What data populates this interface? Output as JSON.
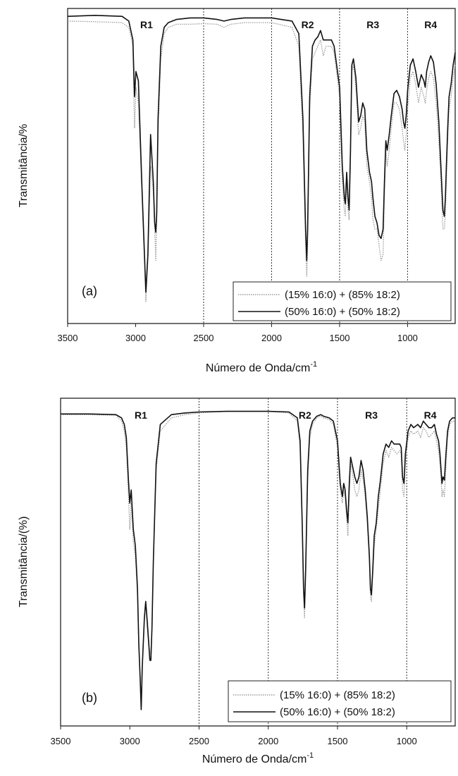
{
  "chart_data": [
    {
      "type": "line",
      "panel_label": "(a)",
      "xlabel": "Número de Onda/cm",
      "xlabel_sup": "-1",
      "ylabel": "Transmitância/%",
      "xlim": [
        3500,
        650
      ],
      "ylim": [
        0,
        1
      ],
      "x_ticks": [
        "3500",
        "3000",
        "2500",
        "2000",
        "1500",
        "1000"
      ],
      "x_tick_values": [
        3500,
        3000,
        2500,
        2000,
        1500,
        1000
      ],
      "region_dividers": [
        2500,
        2000,
        1500,
        1000
      ],
      "regions": [
        {
          "label": "R1",
          "x": 2920
        },
        {
          "label": "R2",
          "x": 1735
        },
        {
          "label": "R3",
          "x": 1255
        },
        {
          "label": "R4",
          "x": 830
        }
      ],
      "legend_position": "bottom-right",
      "series": [
        {
          "name": "(15% 16:0) + (85% 18:2)",
          "style": "dotted",
          "color": "#9a9a9a",
          "x": [
            3500,
            3300,
            3100,
            3050,
            3020,
            3008,
            2998,
            2980,
            2955,
            2935,
            2925,
            2910,
            2890,
            2870,
            2860,
            2852,
            2845,
            2835,
            2815,
            2790,
            2760,
            2700,
            2600,
            2500,
            2400,
            2350,
            2300,
            2200,
            2000,
            1850,
            1800,
            1770,
            1750,
            1742,
            1735,
            1720,
            1700,
            1680,
            1660,
            1640,
            1620,
            1600,
            1560,
            1540,
            1500,
            1480,
            1465,
            1458,
            1448,
            1438,
            1430,
            1420,
            1410,
            1398,
            1380,
            1360,
            1345,
            1330,
            1315,
            1300,
            1280,
            1265,
            1255,
            1240,
            1225,
            1210,
            1195,
            1180,
            1170,
            1160,
            1150,
            1135,
            1120,
            1100,
            1080,
            1060,
            1040,
            1030,
            1020,
            1010,
            1000,
            980,
            960,
            940,
            920,
            900,
            880,
            870,
            860,
            845,
            830,
            810,
            790,
            770,
            755,
            740,
            730,
            722,
            715,
            705,
            695,
            680,
            665,
            650
          ],
          "y": [
            0.96,
            0.958,
            0.955,
            0.94,
            0.88,
            0.62,
            0.75,
            0.7,
            0.42,
            0.2,
            0.07,
            0.2,
            0.5,
            0.42,
            0.3,
            0.2,
            0.32,
            0.6,
            0.84,
            0.92,
            0.94,
            0.95,
            0.95,
            0.952,
            0.95,
            0.94,
            0.95,
            0.955,
            0.955,
            0.94,
            0.88,
            0.6,
            0.25,
            0.15,
            0.25,
            0.68,
            0.84,
            0.86,
            0.88,
            0.9,
            0.85,
            0.88,
            0.88,
            0.86,
            0.72,
            0.45,
            0.36,
            0.34,
            0.45,
            0.36,
            0.33,
            0.5,
            0.8,
            0.82,
            0.75,
            0.6,
            0.62,
            0.66,
            0.64,
            0.5,
            0.45,
            0.4,
            0.33,
            0.3,
            0.3,
            0.25,
            0.2,
            0.22,
            0.4,
            0.55,
            0.5,
            0.55,
            0.62,
            0.7,
            0.7,
            0.68,
            0.62,
            0.58,
            0.55,
            0.6,
            0.68,
            0.78,
            0.8,
            0.76,
            0.7,
            0.75,
            0.72,
            0.7,
            0.74,
            0.78,
            0.8,
            0.78,
            0.7,
            0.58,
            0.45,
            0.3,
            0.3,
            0.35,
            0.45,
            0.58,
            0.68,
            0.72,
            0.78,
            0.82
          ]
        },
        {
          "name": "(50% 16:0) + (50% 18:2)",
          "style": "solid",
          "color": "#111111",
          "x": [
            3500,
            3300,
            3100,
            3050,
            3020,
            3008,
            2998,
            2980,
            2955,
            2935,
            2925,
            2910,
            2890,
            2870,
            2860,
            2852,
            2845,
            2835,
            2815,
            2790,
            2760,
            2700,
            2600,
            2500,
            2400,
            2350,
            2300,
            2200,
            2000,
            1850,
            1800,
            1770,
            1750,
            1742,
            1735,
            1720,
            1700,
            1680,
            1660,
            1640,
            1620,
            1600,
            1560,
            1540,
            1500,
            1480,
            1465,
            1458,
            1448,
            1438,
            1430,
            1420,
            1410,
            1398,
            1380,
            1360,
            1345,
            1330,
            1315,
            1300,
            1280,
            1265,
            1255,
            1240,
            1225,
            1210,
            1195,
            1180,
            1170,
            1160,
            1150,
            1135,
            1120,
            1100,
            1080,
            1060,
            1040,
            1030,
            1020,
            1010,
            1000,
            980,
            960,
            940,
            920,
            900,
            880,
            870,
            860,
            845,
            830,
            810,
            790,
            770,
            755,
            740,
            730,
            722,
            715,
            705,
            695,
            680,
            665,
            650
          ],
          "y": [
            0.975,
            0.978,
            0.975,
            0.96,
            0.9,
            0.72,
            0.8,
            0.77,
            0.45,
            0.22,
            0.1,
            0.22,
            0.6,
            0.45,
            0.32,
            0.29,
            0.35,
            0.65,
            0.88,
            0.94,
            0.955,
            0.965,
            0.97,
            0.97,
            0.965,
            0.96,
            0.965,
            0.97,
            0.97,
            0.96,
            0.92,
            0.65,
            0.3,
            0.2,
            0.3,
            0.72,
            0.88,
            0.9,
            0.91,
            0.93,
            0.9,
            0.9,
            0.9,
            0.88,
            0.75,
            0.5,
            0.4,
            0.38,
            0.48,
            0.4,
            0.36,
            0.55,
            0.82,
            0.84,
            0.78,
            0.64,
            0.66,
            0.7,
            0.68,
            0.55,
            0.48,
            0.45,
            0.4,
            0.34,
            0.32,
            0.28,
            0.27,
            0.3,
            0.45,
            0.58,
            0.55,
            0.6,
            0.66,
            0.73,
            0.74,
            0.72,
            0.68,
            0.64,
            0.62,
            0.66,
            0.74,
            0.82,
            0.84,
            0.8,
            0.75,
            0.79,
            0.77,
            0.75,
            0.8,
            0.83,
            0.85,
            0.83,
            0.76,
            0.64,
            0.5,
            0.36,
            0.34,
            0.4,
            0.5,
            0.62,
            0.72,
            0.76,
            0.82,
            0.86
          ]
        }
      ]
    },
    {
      "type": "line",
      "panel_label": "(b)",
      "xlabel": "Número de Onda/cm",
      "xlabel_sup": "-1",
      "ylabel": "Transmitância/(%)",
      "xlim": [
        3500,
        650
      ],
      "ylim": [
        0,
        1
      ],
      "x_ticks": [
        "3500",
        "3000",
        "2500",
        "2000",
        "1500",
        "1000"
      ],
      "x_tick_values": [
        3500,
        3000,
        2500,
        2000,
        1500,
        1000
      ],
      "region_dividers": [
        2500,
        2000,
        1500,
        1000
      ],
      "regions": [
        {
          "label": "R1",
          "x": 2920
        },
        {
          "label": "R2",
          "x": 1735
        },
        {
          "label": "R3",
          "x": 1255
        },
        {
          "label": "R4",
          "x": 830
        }
      ],
      "legend_position": "bottom-right",
      "series": [
        {
          "name": "(15% 16:0) + (85% 18:2)",
          "style": "dotted",
          "color": "#9a9a9a",
          "x": [
            3500,
            3300,
            3100,
            3060,
            3040,
            3025,
            3010,
            3000,
            2990,
            2975,
            2960,
            2945,
            2935,
            2925,
            2918,
            2910,
            2895,
            2885,
            2875,
            2865,
            2855,
            2848,
            2840,
            2830,
            2810,
            2780,
            2700,
            2600,
            2500,
            2300,
            2100,
            2000,
            1850,
            1790,
            1770,
            1755,
            1745,
            1738,
            1730,
            1715,
            1700,
            1680,
            1650,
            1620,
            1600,
            1560,
            1530,
            1500,
            1480,
            1465,
            1455,
            1445,
            1435,
            1425,
            1415,
            1405,
            1395,
            1375,
            1360,
            1345,
            1330,
            1315,
            1300,
            1285,
            1270,
            1262,
            1255,
            1245,
            1235,
            1220,
            1205,
            1190,
            1170,
            1150,
            1130,
            1110,
            1090,
            1070,
            1050,
            1040,
            1030,
            1020,
            1010,
            990,
            970,
            950,
            920,
            900,
            880,
            860,
            840,
            820,
            800,
            785,
            770,
            760,
            752,
            745,
            738,
            728,
            718,
            705,
            690,
            670,
            650
          ],
          "y": [
            0.95,
            0.95,
            0.948,
            0.93,
            0.9,
            0.85,
            0.7,
            0.6,
            0.68,
            0.56,
            0.52,
            0.4,
            0.25,
            0.15,
            0.06,
            0.18,
            0.32,
            0.38,
            0.34,
            0.28,
            0.22,
            0.22,
            0.3,
            0.5,
            0.78,
            0.9,
            0.94,
            0.95,
            0.955,
            0.96,
            0.96,
            0.96,
            0.955,
            0.93,
            0.85,
            0.6,
            0.4,
            0.33,
            0.45,
            0.75,
            0.88,
            0.92,
            0.94,
            0.945,
            0.94,
            0.935,
            0.92,
            0.85,
            0.72,
            0.68,
            0.72,
            0.7,
            0.64,
            0.58,
            0.7,
            0.8,
            0.78,
            0.72,
            0.7,
            0.72,
            0.78,
            0.75,
            0.7,
            0.62,
            0.5,
            0.4,
            0.38,
            0.46,
            0.55,
            0.6,
            0.66,
            0.72,
            0.8,
            0.84,
            0.82,
            0.85,
            0.84,
            0.83,
            0.84,
            0.83,
            0.72,
            0.7,
            0.8,
            0.88,
            0.9,
            0.89,
            0.9,
            0.88,
            0.91,
            0.9,
            0.88,
            0.89,
            0.9,
            0.87,
            0.84,
            0.8,
            0.75,
            0.7,
            0.72,
            0.7,
            0.78,
            0.88,
            0.92,
            0.93,
            0.93
          ]
        },
        {
          "name": "(50% 16:0) + (50% 18:2)",
          "style": "solid",
          "color": "#111111",
          "x": [
            3500,
            3300,
            3100,
            3060,
            3040,
            3025,
            3010,
            3000,
            2990,
            2975,
            2960,
            2945,
            2935,
            2925,
            2918,
            2910,
            2895,
            2885,
            2875,
            2865,
            2855,
            2848,
            2840,
            2830,
            2810,
            2780,
            2700,
            2600,
            2500,
            2300,
            2100,
            2000,
            1850,
            1790,
            1770,
            1755,
            1745,
            1738,
            1730,
            1715,
            1700,
            1680,
            1650,
            1620,
            1600,
            1560,
            1530,
            1500,
            1480,
            1465,
            1455,
            1445,
            1435,
            1425,
            1415,
            1405,
            1395,
            1375,
            1360,
            1345,
            1330,
            1315,
            1300,
            1285,
            1270,
            1262,
            1255,
            1245,
            1235,
            1220,
            1205,
            1190,
            1170,
            1150,
            1130,
            1110,
            1090,
            1070,
            1050,
            1040,
            1030,
            1020,
            1010,
            990,
            970,
            950,
            920,
            900,
            880,
            860,
            840,
            820,
            800,
            785,
            770,
            760,
            752,
            745,
            738,
            728,
            718,
            705,
            690,
            670,
            650
          ],
          "y": [
            0.952,
            0.952,
            0.95,
            0.94,
            0.92,
            0.88,
            0.75,
            0.68,
            0.72,
            0.6,
            0.55,
            0.42,
            0.25,
            0.14,
            0.05,
            0.18,
            0.33,
            0.38,
            0.32,
            0.26,
            0.2,
            0.2,
            0.3,
            0.5,
            0.8,
            0.92,
            0.95,
            0.955,
            0.958,
            0.96,
            0.96,
            0.96,
            0.958,
            0.94,
            0.87,
            0.62,
            0.42,
            0.36,
            0.48,
            0.78,
            0.9,
            0.93,
            0.945,
            0.95,
            0.945,
            0.94,
            0.93,
            0.87,
            0.74,
            0.7,
            0.74,
            0.72,
            0.66,
            0.62,
            0.74,
            0.82,
            0.8,
            0.76,
            0.74,
            0.76,
            0.81,
            0.78,
            0.72,
            0.64,
            0.52,
            0.42,
            0.4,
            0.48,
            0.58,
            0.62,
            0.7,
            0.75,
            0.83,
            0.86,
            0.85,
            0.87,
            0.86,
            0.86,
            0.86,
            0.85,
            0.76,
            0.74,
            0.83,
            0.9,
            0.92,
            0.91,
            0.92,
            0.91,
            0.93,
            0.92,
            0.91,
            0.91,
            0.92,
            0.89,
            0.87,
            0.83,
            0.78,
            0.74,
            0.76,
            0.75,
            0.82,
            0.9,
            0.93,
            0.94,
            0.94
          ]
        }
      ]
    }
  ]
}
